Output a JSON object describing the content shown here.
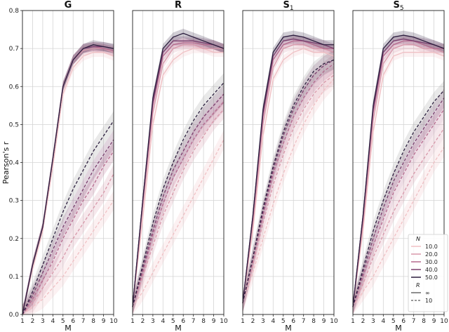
{
  "chart_data": {
    "type": "line",
    "ylabel": "Pearson's r",
    "xlabel": "M",
    "ylim": [
      0.0,
      0.8
    ],
    "xlim": [
      1,
      10
    ],
    "x_ticks": [
      1,
      2,
      3,
      4,
      5,
      6,
      7,
      8,
      9,
      10
    ],
    "y_ticks": [
      0.0,
      0.1,
      0.2,
      0.3,
      0.4,
      0.5,
      0.6,
      0.7,
      0.8
    ],
    "grid": true,
    "legend": {
      "placement": "bottom-right of last panel",
      "hue_title": "N",
      "style_title": "R",
      "hue_entries": [
        {
          "label": "10.0",
          "color": "#f0c0c4"
        },
        {
          "label": "20.0",
          "color": "#d898aa"
        },
        {
          "label": "30.0",
          "color": "#b56a8e"
        },
        {
          "label": "40.0",
          "color": "#7a3f6e"
        },
        {
          "label": "50.0",
          "color": "#2d1f3f"
        }
      ],
      "style_entries": [
        {
          "label": "∞",
          "dash": "solid"
        },
        {
          "label": "10",
          "dash": "dashed"
        }
      ]
    },
    "panels": [
      {
        "title": "G",
        "title_sub": "",
        "x": [
          1,
          2,
          3,
          4,
          5,
          6,
          7,
          8,
          9,
          10
        ],
        "series": [
          {
            "N": "10.0",
            "R": "∞",
            "values": [
              0.0,
              0.12,
              0.22,
              0.39,
              0.58,
              0.65,
              0.68,
              0.69,
              0.69,
              0.68
            ]
          },
          {
            "N": "20.0",
            "R": "∞",
            "values": [
              0.0,
              0.13,
              0.23,
              0.41,
              0.6,
              0.67,
              0.695,
              0.7,
              0.7,
              0.69
            ]
          },
          {
            "N": "30.0",
            "R": "∞",
            "values": [
              0.0,
              0.13,
              0.23,
              0.41,
              0.6,
              0.67,
              0.7,
              0.705,
              0.7,
              0.695
            ]
          },
          {
            "N": "40.0",
            "R": "∞",
            "values": [
              0.0,
              0.13,
              0.23,
              0.41,
              0.6,
              0.67,
              0.7,
              0.705,
              0.705,
              0.7
            ]
          },
          {
            "N": "50.0",
            "R": "∞",
            "values": [
              0.0,
              0.13,
              0.23,
              0.41,
              0.6,
              0.67,
              0.7,
              0.71,
              0.705,
              0.7
            ]
          },
          {
            "N": "10.0",
            "R": "10",
            "values": [
              0.0,
              0.02,
              0.04,
              0.07,
              0.1,
              0.14,
              0.18,
              0.22,
              0.26,
              0.3
            ]
          },
          {
            "N": "20.0",
            "R": "10",
            "values": [
              0.0,
              0.03,
              0.07,
              0.11,
              0.15,
              0.2,
              0.24,
              0.28,
              0.32,
              0.37
            ]
          },
          {
            "N": "30.0",
            "R": "10",
            "values": [
              0.0,
              0.04,
              0.09,
              0.14,
              0.2,
              0.25,
              0.3,
              0.34,
              0.39,
              0.43
            ]
          },
          {
            "N": "40.0",
            "R": "10",
            "values": [
              0.0,
              0.05,
              0.11,
              0.17,
              0.23,
              0.28,
              0.33,
              0.38,
              0.42,
              0.46
            ]
          },
          {
            "N": "50.0",
            "R": "10",
            "values": [
              0.0,
              0.06,
              0.13,
              0.2,
              0.27,
              0.33,
              0.38,
              0.43,
              0.47,
              0.51
            ]
          }
        ]
      },
      {
        "title": "R",
        "title_sub": "",
        "x": [
          1,
          2,
          3,
          4,
          5,
          6,
          7,
          8,
          9,
          10
        ],
        "series": [
          {
            "N": "10.0",
            "R": "∞",
            "values": [
              0.02,
              0.25,
              0.5,
              0.63,
              0.67,
              0.69,
              0.7,
              0.7,
              0.69,
              0.69
            ]
          },
          {
            "N": "20.0",
            "R": "∞",
            "values": [
              0.02,
              0.28,
              0.53,
              0.66,
              0.7,
              0.71,
              0.71,
              0.7,
              0.7,
              0.7
            ]
          },
          {
            "N": "30.0",
            "R": "∞",
            "values": [
              0.02,
              0.29,
              0.55,
              0.68,
              0.71,
              0.715,
              0.715,
              0.71,
              0.71,
              0.7
            ]
          },
          {
            "N": "40.0",
            "R": "∞",
            "values": [
              0.02,
              0.3,
              0.56,
              0.69,
              0.72,
              0.72,
              0.72,
              0.715,
              0.71,
              0.7
            ]
          },
          {
            "N": "50.0",
            "R": "∞",
            "values": [
              0.02,
              0.3,
              0.57,
              0.7,
              0.73,
              0.74,
              0.73,
              0.72,
              0.71,
              0.7
            ]
          },
          {
            "N": "10.0",
            "R": "10",
            "values": [
              0.02,
              0.06,
              0.11,
              0.16,
              0.21,
              0.26,
              0.31,
              0.36,
              0.41,
              0.46
            ]
          },
          {
            "N": "20.0",
            "R": "10",
            "values": [
              0.02,
              0.1,
              0.18,
              0.26,
              0.32,
              0.38,
              0.43,
              0.47,
              0.51,
              0.54
            ]
          },
          {
            "N": "30.0",
            "R": "10",
            "values": [
              0.02,
              0.11,
              0.21,
              0.29,
              0.36,
              0.41,
              0.46,
              0.5,
              0.53,
              0.56
            ]
          },
          {
            "N": "40.0",
            "R": "10",
            "values": [
              0.02,
              0.12,
              0.22,
              0.31,
              0.38,
              0.43,
              0.48,
              0.52,
              0.55,
              0.58
            ]
          },
          {
            "N": "50.0",
            "R": "10",
            "values": [
              0.02,
              0.13,
              0.24,
              0.33,
              0.4,
              0.46,
              0.51,
              0.55,
              0.58,
              0.61
            ]
          }
        ]
      },
      {
        "title": "S",
        "title_sub": "1",
        "x": [
          1,
          2,
          3,
          4,
          5,
          6,
          7,
          8,
          9,
          10
        ],
        "series": [
          {
            "N": "10.0",
            "R": "∞",
            "values": [
              0.03,
              0.22,
              0.47,
              0.62,
              0.67,
              0.69,
              0.7,
              0.69,
              0.69,
              0.68
            ]
          },
          {
            "N": "20.0",
            "R": "∞",
            "values": [
              0.03,
              0.24,
              0.5,
              0.65,
              0.7,
              0.71,
              0.71,
              0.7,
              0.7,
              0.69
            ]
          },
          {
            "N": "30.0",
            "R": "∞",
            "values": [
              0.03,
              0.25,
              0.52,
              0.67,
              0.71,
              0.72,
              0.72,
              0.71,
              0.7,
              0.7
            ]
          },
          {
            "N": "40.0",
            "R": "∞",
            "values": [
              0.03,
              0.26,
              0.53,
              0.68,
              0.72,
              0.725,
              0.72,
              0.715,
              0.71,
              0.7
            ]
          },
          {
            "N": "50.0",
            "R": "∞",
            "values": [
              0.03,
              0.26,
              0.54,
              0.69,
              0.73,
              0.735,
              0.73,
              0.72,
              0.71,
              0.71
            ]
          },
          {
            "N": "10.0",
            "R": "10",
            "values": [
              0.03,
              0.11,
              0.2,
              0.29,
              0.37,
              0.44,
              0.5,
              0.55,
              0.59,
              0.62
            ]
          },
          {
            "N": "20.0",
            "R": "10",
            "values": [
              0.03,
              0.13,
              0.24,
              0.34,
              0.42,
              0.49,
              0.54,
              0.58,
              0.61,
              0.63
            ]
          },
          {
            "N": "30.0",
            "R": "10",
            "values": [
              0.03,
              0.14,
              0.26,
              0.37,
              0.45,
              0.52,
              0.57,
              0.61,
              0.64,
              0.66
            ]
          },
          {
            "N": "40.0",
            "R": "10",
            "values": [
              0.03,
              0.15,
              0.27,
              0.38,
              0.47,
              0.54,
              0.59,
              0.63,
              0.655,
              0.67
            ]
          },
          {
            "N": "50.0",
            "R": "10",
            "values": [
              0.03,
              0.15,
              0.28,
              0.39,
              0.48,
              0.55,
              0.6,
              0.64,
              0.66,
              0.67
            ]
          }
        ]
      },
      {
        "title": "S",
        "title_sub": "5",
        "x": [
          1,
          2,
          3,
          4,
          5,
          6,
          7,
          8,
          9,
          10
        ],
        "series": [
          {
            "N": "10.0",
            "R": "∞",
            "values": [
              0.02,
              0.22,
              0.48,
              0.63,
              0.68,
              0.69,
              0.69,
              0.69,
              0.69,
              0.68
            ]
          },
          {
            "N": "20.0",
            "R": "∞",
            "values": [
              0.02,
              0.24,
              0.51,
              0.66,
              0.7,
              0.71,
              0.71,
              0.7,
              0.7,
              0.69
            ]
          },
          {
            "N": "30.0",
            "R": "∞",
            "values": [
              0.02,
              0.25,
              0.53,
              0.68,
              0.71,
              0.72,
              0.72,
              0.71,
              0.7,
              0.7
            ]
          },
          {
            "N": "40.0",
            "R": "∞",
            "values": [
              0.02,
              0.26,
              0.54,
              0.69,
              0.72,
              0.725,
              0.72,
              0.715,
              0.71,
              0.7
            ]
          },
          {
            "N": "50.0",
            "R": "∞",
            "values": [
              0.02,
              0.26,
              0.55,
              0.7,
              0.73,
              0.735,
              0.73,
              0.72,
              0.71,
              0.7
            ]
          },
          {
            "N": "10.0",
            "R": "10",
            "values": [
              0.02,
              0.06,
              0.1,
              0.15,
              0.2,
              0.25,
              0.3,
              0.35,
              0.4,
              0.44
            ]
          },
          {
            "N": "20.0",
            "R": "10",
            "values": [
              0.02,
              0.08,
              0.15,
              0.21,
              0.27,
              0.32,
              0.37,
              0.41,
              0.45,
              0.49
            ]
          },
          {
            "N": "30.0",
            "R": "10",
            "values": [
              0.02,
              0.1,
              0.18,
              0.25,
              0.32,
              0.37,
              0.42,
              0.46,
              0.5,
              0.54
            ]
          },
          {
            "N": "40.0",
            "R": "10",
            "values": [
              0.02,
              0.11,
              0.2,
              0.28,
              0.35,
              0.4,
              0.45,
              0.49,
              0.53,
              0.57
            ]
          },
          {
            "N": "50.0",
            "R": "10",
            "values": [
              0.02,
              0.12,
              0.22,
              0.3,
              0.37,
              0.43,
              0.48,
              0.52,
              0.56,
              0.59
            ]
          }
        ]
      }
    ]
  }
}
